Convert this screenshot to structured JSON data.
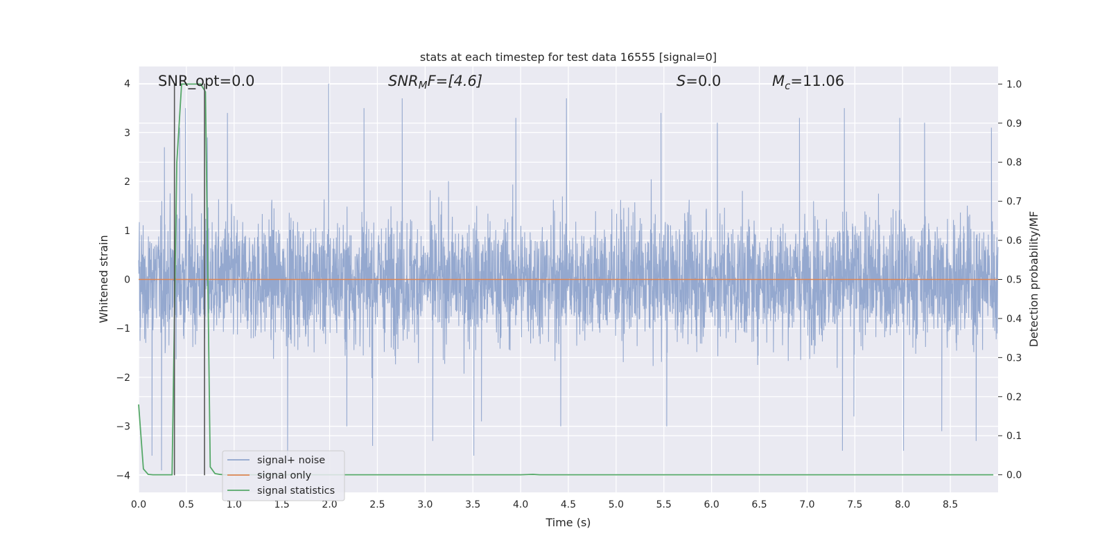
{
  "chart_data": {
    "type": "line",
    "title": "stats at each timestep for test data 16555 [signal=0]",
    "xlabel": "Time (s)",
    "ylabel_left": "Whitened strain",
    "ylabel_right": "Detection probability/MF",
    "xlim": [
      0.0,
      9.0
    ],
    "ylim_left": [
      -4.35,
      4.35
    ],
    "ylim_right": [
      -0.045,
      1.045
    ],
    "xticks": [
      0.0,
      0.5,
      1.0,
      1.5,
      2.0,
      2.5,
      3.0,
      3.5,
      4.0,
      4.5,
      5.0,
      5.5,
      6.0,
      6.5,
      7.0,
      7.5,
      8.0,
      8.5
    ],
    "xtick_labels": [
      "0.0",
      "0.5",
      "1.0",
      "1.5",
      "2.0",
      "2.5",
      "3.0",
      "3.5",
      "4.0",
      "4.5",
      "5.0",
      "5.5",
      "6.0",
      "6.5",
      "7.0",
      "7.5",
      "8.0",
      "8.5"
    ],
    "yticks_left": [
      -4,
      -3,
      -2,
      -1,
      0,
      1,
      2,
      3,
      4
    ],
    "ytick_labels_left": [
      "−4",
      "−3",
      "−2",
      "−1",
      "0",
      "1",
      "2",
      "3",
      "4"
    ],
    "yticks_right": [
      0.0,
      0.1,
      0.2,
      0.3,
      0.4,
      0.5,
      0.6,
      0.7,
      0.8,
      0.9,
      1.0
    ],
    "ytick_labels_right": [
      "0.0",
      "0.1",
      "0.2",
      "0.3",
      "0.4",
      "0.5",
      "0.6",
      "0.7",
      "0.8",
      "0.9",
      "1.0"
    ],
    "grid": true,
    "legend_position": "lower-left",
    "legend": [
      "signal+ noise",
      "signal only",
      "signal statistics"
    ],
    "annotations": {
      "snr_opt": "SNR_opt=0.0",
      "snr_mf_var": "SNR",
      "snr_mf_sub": "M",
      "snr_mf_rest": "F=[4.6]",
      "s_var": "S",
      "s_rest": "=0.0",
      "mc_var": "M",
      "mc_sub": "c",
      "mc_rest": "=11.06"
    },
    "vlines_x": [
      0.375,
      0.69
    ],
    "colors": {
      "signal_noise": "#8fa4cc",
      "signal_only": "#dd8452",
      "signal_statistics": "#55a868",
      "vline": "#555555",
      "axes_bg": "#eaeaf2",
      "grid": "#ffffff"
    },
    "series": [
      {
        "name": "signal+ noise",
        "axis": "left",
        "description_values": "dense whitened noise, roughly gaussian, |y| mostly below 2.5, peaks up to about 4",
        "sample_rate_hz": 2048,
        "peak_points": [
          [
            0.14,
            -3.6
          ],
          [
            0.24,
            -3.9
          ],
          [
            0.27,
            2.7
          ],
          [
            0.43,
            3.1
          ],
          [
            0.49,
            3.5
          ],
          [
            0.72,
            2.9
          ],
          [
            0.93,
            3.4
          ],
          [
            1.56,
            -3.7
          ],
          [
            1.99,
            4.0
          ],
          [
            2.18,
            -3.0
          ],
          [
            2.36,
            3.5
          ],
          [
            2.45,
            -3.4
          ],
          [
            2.76,
            3.7
          ],
          [
            3.08,
            -3.3
          ],
          [
            3.51,
            -3.6
          ],
          [
            3.59,
            -2.9
          ],
          [
            3.95,
            3.3
          ],
          [
            4.48,
            3.7
          ],
          [
            4.42,
            -3.0
          ],
          [
            5.47,
            3.4
          ],
          [
            5.53,
            -3.0
          ],
          [
            6.06,
            3.2
          ],
          [
            6.92,
            3.3
          ],
          [
            7.37,
            -3.5
          ],
          [
            7.39,
            3.5
          ],
          [
            7.49,
            -2.8
          ],
          [
            7.97,
            3.3
          ],
          [
            8.01,
            -3.5
          ],
          [
            8.23,
            3.2
          ],
          [
            8.41,
            -3.1
          ],
          [
            8.77,
            -3.3
          ],
          [
            8.93,
            3.1
          ]
        ]
      },
      {
        "name": "signal only",
        "axis": "left",
        "x": [
          0.0,
          9.0
        ],
        "y": [
          0.0,
          0.0
        ]
      },
      {
        "name": "signal statistics",
        "axis": "right",
        "x": [
          0.0,
          0.05,
          0.1,
          0.15,
          0.2,
          0.25,
          0.3,
          0.35,
          0.4,
          0.45,
          0.5,
          0.55,
          0.6,
          0.65,
          0.7,
          0.75,
          0.8,
          0.85,
          0.9,
          1.0,
          2.0,
          3.0,
          4.0,
          4.13,
          4.2,
          5.0,
          6.0,
          7.0,
          8.0,
          8.95
        ],
        "y": [
          0.18,
          0.015,
          0.001,
          0.0,
          0.0,
          0.0,
          0.0,
          0.0,
          0.8,
          1.0,
          1.0,
          1.0,
          1.0,
          1.0,
          0.98,
          0.02,
          0.003,
          0.001,
          0.0,
          0.0,
          0.0,
          0.0,
          0.0,
          0.001,
          0.0,
          0.0,
          0.0,
          0.0,
          0.0,
          0.0
        ]
      }
    ]
  }
}
